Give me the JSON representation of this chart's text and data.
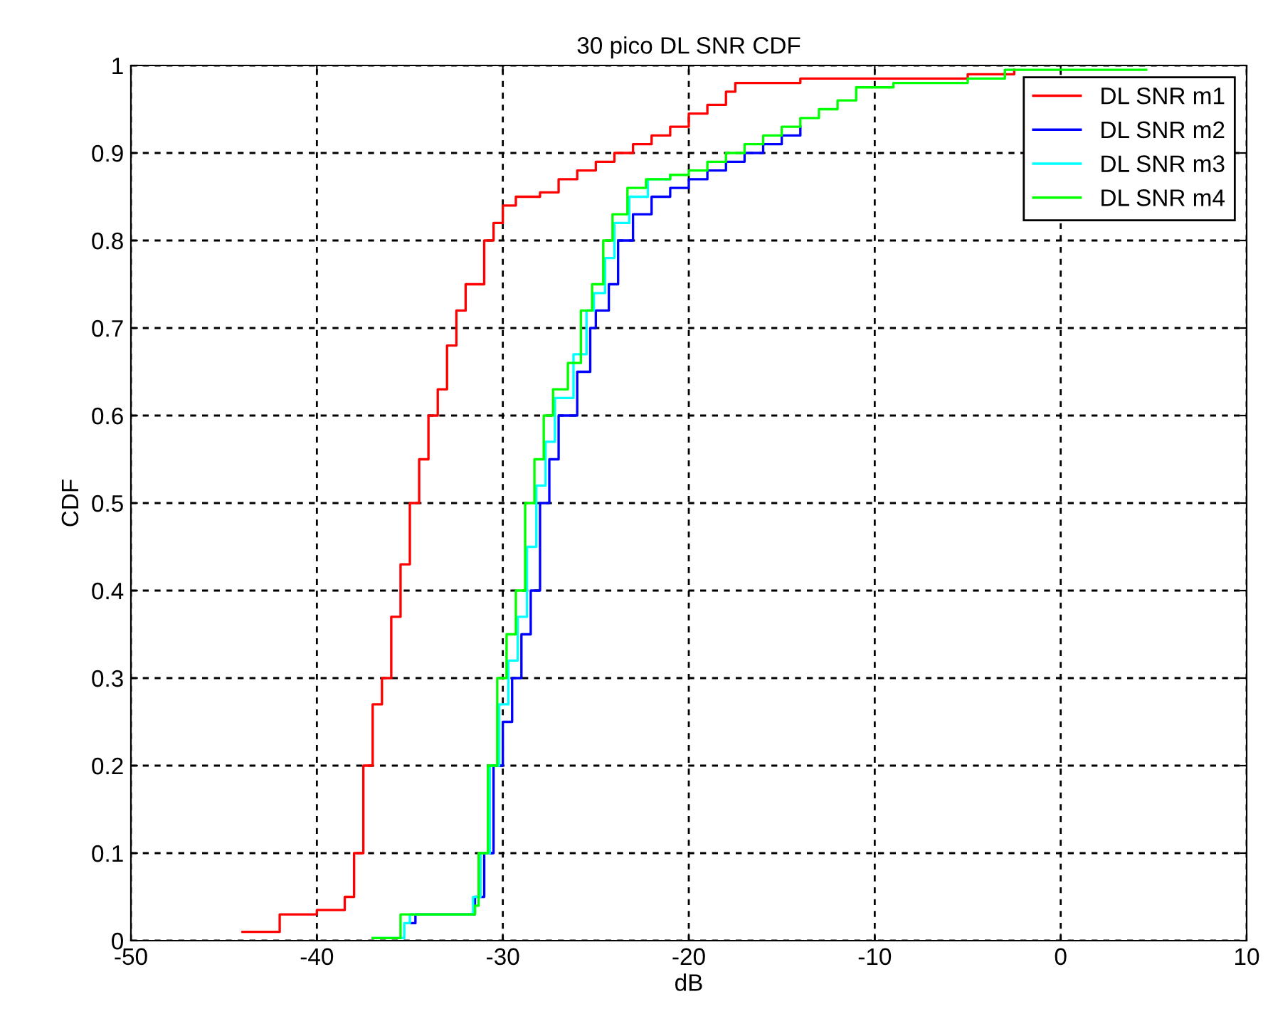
{
  "chart_data": {
    "type": "step",
    "title": "30 pico DL SNR CDF",
    "xlabel": "dB",
    "ylabel": "CDF",
    "xlim": [
      -50,
      10
    ],
    "xticks": [
      -50,
      -40,
      -30,
      -20,
      -10,
      0,
      10
    ],
    "ylim": [
      0,
      1
    ],
    "yticks": [
      0,
      0.1,
      0.2,
      0.3,
      0.4,
      0.5,
      0.6,
      0.7,
      0.8,
      0.9,
      1
    ],
    "grid": true,
    "legend": "top right",
    "line_style": "solid",
    "series": [
      {
        "name": "DL SNR m1",
        "color": "#ff0000",
        "x": [
          -44,
          -42,
          -40,
          -38.5,
          -38,
          -37.5,
          -37,
          -36.5,
          -36,
          -35.5,
          -35,
          -34.5,
          -34,
          -33.5,
          -33,
          -32.5,
          -32,
          -31,
          -30.5,
          -30,
          -29.3,
          -28,
          -27,
          -26,
          -25,
          -24,
          -23,
          -22,
          -21,
          -20,
          -19,
          -18,
          -17.5,
          -14,
          -5,
          -2.5
        ],
        "values": [
          0.01,
          0.03,
          0.035,
          0.05,
          0.1,
          0.2,
          0.27,
          0.3,
          0.37,
          0.43,
          0.5,
          0.55,
          0.6,
          0.63,
          0.68,
          0.72,
          0.75,
          0.8,
          0.82,
          0.84,
          0.85,
          0.855,
          0.87,
          0.88,
          0.89,
          0.9,
          0.91,
          0.92,
          0.93,
          0.945,
          0.955,
          0.97,
          0.98,
          0.985,
          0.99,
          0.995
        ]
      },
      {
        "name": "DL SNR m2",
        "color": "#0000ff",
        "x": [
          -35,
          -34.7,
          -31.5,
          -31,
          -30.5,
          -30,
          -29.5,
          -29,
          -28.5,
          -28,
          -27.5,
          -27,
          -26,
          -25.3,
          -25,
          -24.3,
          -23.8,
          -23,
          -22,
          -21,
          -20,
          -19,
          -18,
          -17,
          -16,
          -15,
          -14
        ],
        "values": [
          0.02,
          0.03,
          0.05,
          0.1,
          0.2,
          0.25,
          0.3,
          0.35,
          0.4,
          0.5,
          0.55,
          0.6,
          0.65,
          0.7,
          0.72,
          0.75,
          0.8,
          0.83,
          0.85,
          0.86,
          0.87,
          0.88,
          0.89,
          0.9,
          0.91,
          0.92,
          0.93
        ]
      },
      {
        "name": "DL SNR m3",
        "color": "#00ffff",
        "x": [
          -37,
          -35.3,
          -35,
          -31.6,
          -31.2,
          -30.7,
          -30.2,
          -29.7,
          -29.2,
          -28.7,
          -28.2,
          -27.7,
          -27.2,
          -26.2,
          -25.5,
          -25.1,
          -24.5,
          -24,
          -23.2,
          -22.2,
          -21
        ],
        "values": [
          0.003,
          0.02,
          0.03,
          0.05,
          0.1,
          0.2,
          0.27,
          0.32,
          0.37,
          0.45,
          0.52,
          0.57,
          0.62,
          0.67,
          0.72,
          0.74,
          0.78,
          0.82,
          0.85,
          0.87,
          0.875
        ]
      },
      {
        "name": "DL SNR m4",
        "color": "#00ff00",
        "x": [
          -37,
          -35.5,
          -35.5,
          -31.5,
          -31.3,
          -30.8,
          -30.3,
          -29.8,
          -29.3,
          -28.8,
          -28.3,
          -27.8,
          -27.3,
          -26.5,
          -25.8,
          -25.2,
          -24.6,
          -24.1,
          -23.3,
          -22.3,
          -21,
          -20,
          -19,
          -18,
          -17,
          -16,
          -15,
          -14,
          -13,
          -12,
          -11,
          -9,
          -5,
          -3,
          4.6
        ],
        "values": [
          0.003,
          0.01,
          0.03,
          0.04,
          0.1,
          0.2,
          0.3,
          0.35,
          0.4,
          0.5,
          0.55,
          0.6,
          0.63,
          0.66,
          0.72,
          0.75,
          0.8,
          0.83,
          0.86,
          0.87,
          0.875,
          0.88,
          0.89,
          0.9,
          0.91,
          0.92,
          0.93,
          0.94,
          0.95,
          0.96,
          0.975,
          0.98,
          0.985,
          0.995,
          0.995
        ]
      }
    ]
  }
}
